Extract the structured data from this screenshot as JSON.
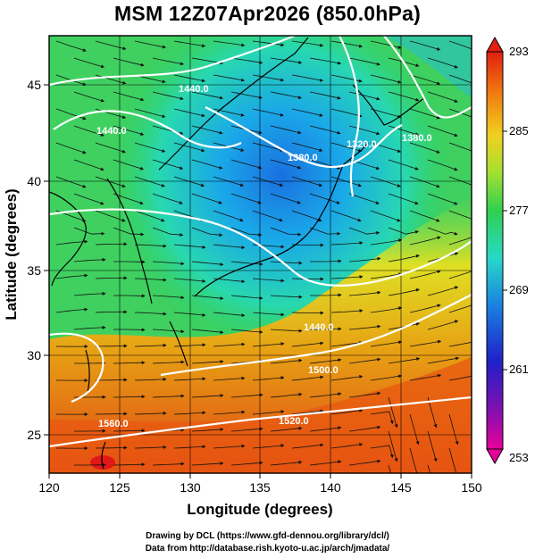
{
  "title": "MSM 12Z07Apr2026 (850.0hPa)",
  "map": {
    "lon_range": [
      120,
      150
    ],
    "lat_range": [
      22.5,
      47.5
    ],
    "xlabel": "Longitude (degrees)",
    "ylabel": "Latitude  (degrees)",
    "x_ticks": [
      "120",
      "125",
      "130",
      "135",
      "140",
      "145",
      "150"
    ],
    "y_ticks": [
      "25",
      "30",
      "35",
      "40",
      "45"
    ],
    "grid": true,
    "field": "temperature (K) shaded, wind streamlines, geopotential height contours"
  },
  "colorbar": {
    "min": 253,
    "max": 293,
    "labels": [
      "293",
      "285",
      "277",
      "269",
      "261",
      "253"
    ],
    "colors": [
      "#e8009a",
      "#2020c8",
      "#1aa0e0",
      "#28d8c8",
      "#30d050",
      "#a8e030",
      "#f0d020",
      "#f08010",
      "#e02010"
    ]
  },
  "contours": {
    "labels": [
      "1440.0",
      "1440.0",
      "1380.0",
      "1320.0",
      "1380.0",
      "1440.0",
      "1500.0",
      "1520.0",
      "1560.0"
    ],
    "color": "#ffffff"
  },
  "credit": {
    "line1": "Drawing by DCL (https://www.gfd-dennou.org/library/dcl/)",
    "line2": "Data from http://database.rish.kyoto-u.ac.jp/arch/jmadata/"
  }
}
